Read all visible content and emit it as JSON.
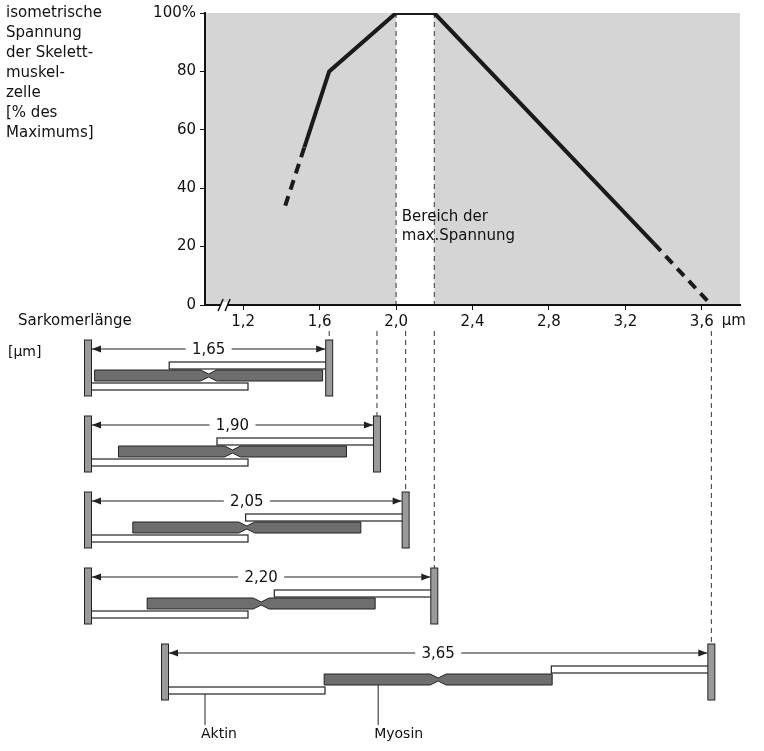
{
  "chart_data": {
    "type": "line",
    "y_label": [
      "isometrische",
      "Spannung",
      "der Skelett-",
      "muskel-",
      "zelle",
      "[% des",
      "Maximums]"
    ],
    "x_label": "Sarkomerlänge",
    "x_unit": "µm",
    "series": [
      {
        "x": [
          1.42,
          1.52
        ],
        "values": [
          34,
          54
        ],
        "color": "#1a1a1a",
        "line_style": "dashed"
      },
      {
        "x": [
          1.52,
          1.65,
          2.0,
          2.2,
          3.35
        ],
        "values": [
          54,
          80,
          100,
          100,
          21
        ],
        "color": "#1a1a1a",
        "line_style": "solid"
      },
      {
        "x": [
          3.35,
          3.65
        ],
        "values": [
          21,
          0
        ],
        "color": "#1a1a1a",
        "line_style": "dashed"
      }
    ],
    "xlim": [
      1.0,
      3.8
    ],
    "xticks": [
      {
        "value": 1.2,
        "label": "1,2"
      },
      {
        "value": 1.6,
        "label": "1,6"
      },
      {
        "value": 2.0,
        "label": "2,0"
      },
      {
        "value": 2.4,
        "label": "2,4"
      },
      {
        "value": 2.8,
        "label": "2,8"
      },
      {
        "value": 3.2,
        "label": "3,2"
      },
      {
        "value": 3.6,
        "label": "3,6"
      }
    ],
    "ylim": [
      0,
      100
    ],
    "yticks": [
      0,
      20,
      40,
      60,
      80,
      {
        "value": 100,
        "label": "100%"
      }
    ],
    "grid": false,
    "max_tension_range": [
      2.0,
      2.2
    ],
    "annotation": {
      "text": [
        "Bereich der",
        "max.Spannung"
      ],
      "x": 2.03,
      "y": 30
    },
    "sarcomeres": {
      "unit_label": "[µm]",
      "lengths": [
        {
          "value": 1.65,
          "label": "1,65"
        },
        {
          "value": 1.9,
          "label": "1,90"
        },
        {
          "value": 2.05,
          "label": "2,05"
        },
        {
          "value": 2.2,
          "label": "2,20"
        },
        {
          "value": 3.65,
          "label": "3,65"
        }
      ],
      "actin_label": "Aktin",
      "myosin_label": "Myosin"
    }
  }
}
